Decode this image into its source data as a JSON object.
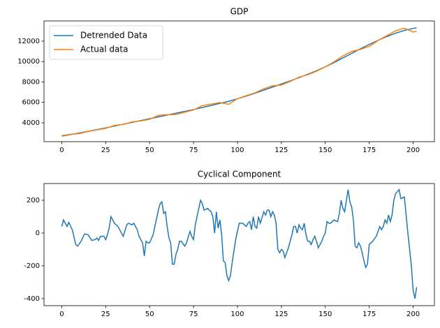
{
  "chart_data": [
    {
      "type": "line",
      "title": "GDP",
      "legend": "upper left",
      "x": [
        0,
        5,
        10,
        15,
        20,
        25,
        30,
        35,
        40,
        45,
        50,
        55,
        60,
        65,
        70,
        75,
        80,
        85,
        90,
        95,
        100,
        105,
        110,
        115,
        120,
        125,
        130,
        135,
        140,
        145,
        150,
        155,
        160,
        165,
        170,
        175,
        180,
        185,
        190,
        195,
        200,
        202
      ],
      "series": [
        {
          "name": "Detrended Data",
          "color": "#1f77b4",
          "values": [
            2700,
            2850,
            3000,
            3160,
            3330,
            3500,
            3680,
            3860,
            4040,
            4220,
            4400,
            4580,
            4760,
            4940,
            5120,
            5300,
            5500,
            5700,
            5900,
            6100,
            6350,
            6620,
            6900,
            7200,
            7500,
            7800,
            8100,
            8420,
            8750,
            9100,
            9480,
            9900,
            10350,
            10800,
            11250,
            11680,
            12080,
            12450,
            12780,
            13050,
            13250,
            13300
          ]
        },
        {
          "name": "Actual data",
          "color": "#ff7f0e",
          "values": [
            2740,
            2880,
            2940,
            3150,
            3300,
            3460,
            3740,
            3840,
            4090,
            4180,
            4340,
            4720,
            4800,
            4810,
            5040,
            5260,
            5680,
            5830,
            5980,
            5810,
            6360,
            6660,
            6940,
            7330,
            7630,
            7700,
            8050,
            8470,
            8700,
            9050,
            9480,
            9980,
            10550,
            10990,
            11190,
            11490,
            12060,
            12530,
            13020,
            13270,
            12900,
            12970
          ]
        }
      ],
      "xlim": [
        -10.1,
        212.1
      ],
      "xticks": [
        0,
        25,
        50,
        75,
        100,
        125,
        150,
        175,
        200
      ],
      "ylim": [
        2150,
        13980
      ],
      "yticks": [
        4000,
        6000,
        8000,
        10000,
        12000
      ]
    },
    {
      "type": "line",
      "title": "Cyclical Component",
      "x": [
        0,
        1,
        3,
        4,
        6,
        8,
        9,
        11,
        13,
        15,
        17,
        19,
        20,
        21,
        22,
        24,
        25,
        26,
        27,
        28,
        30,
        32,
        34,
        35,
        37,
        38,
        40,
        41,
        43,
        44,
        46,
        47,
        48,
        49,
        50,
        52,
        53,
        55,
        56,
        57,
        58,
        59,
        60,
        61,
        62,
        63,
        64,
        65,
        66,
        67,
        68,
        70,
        71,
        73,
        74,
        75,
        76,
        77,
        78,
        79,
        80,
        81,
        83,
        85,
        86,
        87,
        88,
        89,
        90,
        91,
        92,
        93,
        94,
        95,
        96,
        97,
        98,
        99,
        100,
        101,
        103,
        105,
        106,
        107,
        108,
        109,
        110,
        111,
        112,
        113,
        115,
        116,
        117,
        118,
        119,
        120,
        121,
        122,
        123,
        124,
        125,
        126,
        127,
        128,
        129,
        130,
        131,
        132,
        133,
        134,
        135,
        136,
        137,
        138,
        139,
        140,
        141,
        142,
        143,
        144,
        145,
        146,
        147,
        148,
        149,
        150,
        151,
        152,
        153,
        155,
        157,
        158,
        159,
        160,
        161,
        162,
        163,
        164,
        165,
        166,
        167,
        168,
        169,
        170,
        171,
        172,
        173,
        174,
        175,
        176,
        177,
        179,
        181,
        182,
        183,
        184,
        185,
        186,
        187,
        188,
        189,
        190,
        192,
        193,
        195,
        196,
        197,
        199,
        200,
        201,
        202
      ],
      "series": [
        {
          "color": "#1f77b4",
          "values": [
            40,
            80,
            40,
            65,
            20,
            -70,
            -80,
            -50,
            -5,
            -10,
            -45,
            -40,
            -30,
            -45,
            -20,
            -20,
            -40,
            -10,
            30,
            100,
            60,
            40,
            0,
            -20,
            50,
            60,
            50,
            60,
            20,
            -20,
            -60,
            -140,
            -50,
            -60,
            -60,
            -10,
            40,
            140,
            180,
            190,
            120,
            130,
            40,
            -30,
            -60,
            -190,
            -190,
            -130,
            -100,
            -50,
            -50,
            -80,
            -60,
            10,
            -20,
            -40,
            50,
            100,
            150,
            200,
            180,
            140,
            150,
            130,
            100,
            0,
            130,
            30,
            80,
            -10,
            -170,
            -180,
            -260,
            -290,
            -260,
            -180,
            -110,
            -40,
            10,
            60,
            60,
            40,
            60,
            70,
            20,
            100,
            40,
            30,
            100,
            60,
            130,
            110,
            140,
            140,
            100,
            130,
            110,
            60,
            -100,
            -120,
            -100,
            -110,
            -150,
            -120,
            -90,
            -50,
            -10,
            40,
            40,
            0,
            50,
            30,
            20,
            60,
            -10,
            -50,
            -50,
            -70,
            -40,
            -20,
            -50,
            -90,
            -70,
            -50,
            -20,
            0,
            70,
            60,
            60,
            80,
            70,
            120,
            200,
            150,
            130,
            200,
            265,
            190,
            160,
            80,
            -80,
            -90,
            -60,
            -80,
            -120,
            -170,
            -210,
            -190,
            -70,
            -60,
            -50,
            -20,
            40,
            20,
            40,
            80,
            60,
            110,
            70,
            110,
            200,
            240,
            265,
            210,
            220,
            110,
            0,
            -200,
            -350,
            -400,
            -330
          ]
        }
      ],
      "xlim": [
        -10.1,
        212.1
      ],
      "xticks": [
        0,
        25,
        50,
        75,
        100,
        125,
        150,
        175,
        200
      ],
      "ylim": [
        -443,
        302
      ],
      "yticks": [
        -400,
        -200,
        0,
        200
      ]
    }
  ]
}
